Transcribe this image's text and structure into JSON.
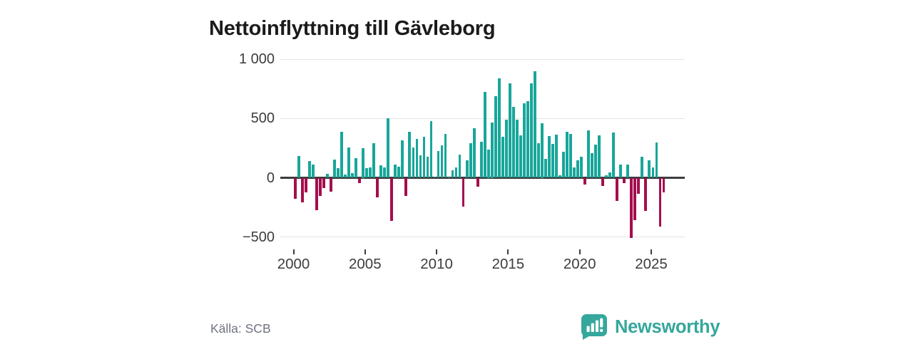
{
  "title": "Nettoinflyttning till Gävleborg",
  "source": "Källa: SCB",
  "logo": {
    "text": "Newsworthy"
  },
  "colors": {
    "positive_bar": "#18a69a",
    "negative_bar": "#a40e4e",
    "gridline": "#e4e4e4",
    "zero_line": "#3d3d3d",
    "axis_text": "#3d3d3d",
    "title_text": "#1b1b1b",
    "source_text": "#6f7380",
    "logo_teal": "#35a79c",
    "background": "#ffffff"
  },
  "y_axis": {
    "ticks": [
      {
        "label": "1 000",
        "value": 1000
      },
      {
        "label": "500",
        "value": 500
      },
      {
        "label": "0",
        "value": 0
      },
      {
        "label": "−500",
        "value": -500
      }
    ]
  },
  "x_axis": {
    "ticks": [
      "2000",
      "2005",
      "2010",
      "2015",
      "2020",
      "2025"
    ]
  },
  "chart_data": {
    "type": "bar",
    "title": "Nettoinflyttning till Gävleborg",
    "x_unit": "quarter",
    "x_range": [
      "2000 Q1",
      "2025 Q4"
    ],
    "ylim": [
      -620,
      1050
    ],
    "y_gridlines": [
      1000,
      500,
      0,
      -500
    ],
    "grid": "horizontal-only",
    "legend": "none",
    "series_by_year": [
      {
        "year": 2000,
        "values": [
          -176,
          182,
          -210,
          -125
        ]
      },
      {
        "year": 2001,
        "values": [
          141,
          113,
          -271,
          -156
        ]
      },
      {
        "year": 2002,
        "values": [
          -85,
          32,
          -115,
          155
        ]
      },
      {
        "year": 2003,
        "values": [
          81,
          390,
          30,
          256
        ]
      },
      {
        "year": 2004,
        "values": [
          40,
          166,
          -44,
          250
        ]
      },
      {
        "year": 2005,
        "values": [
          80,
          86,
          290,
          -164
        ]
      },
      {
        "year": 2006,
        "values": [
          106,
          86,
          500,
          -364
        ]
      },
      {
        "year": 2007,
        "values": [
          110,
          96,
          316,
          -154
        ]
      },
      {
        "year": 2008,
        "values": [
          386,
          256,
          326,
          190
        ]
      },
      {
        "year": 2009,
        "values": [
          346,
          176,
          476,
          10
        ]
      },
      {
        "year": 2010,
        "values": [
          226,
          276,
          370,
          5
        ]
      },
      {
        "year": 2011,
        "values": [
          66,
          86,
          196,
          -244
        ]
      },
      {
        "year": 2012,
        "values": [
          146,
          290,
          416,
          -74
        ]
      },
      {
        "year": 2013,
        "values": [
          306,
          726,
          236,
          466
        ]
      },
      {
        "year": 2014,
        "values": [
          686,
          840,
          346,
          490
        ]
      },
      {
        "year": 2015,
        "values": [
          794,
          600,
          490,
          360
        ]
      },
      {
        "year": 2016,
        "values": [
          630,
          646,
          796,
          900
        ]
      },
      {
        "year": 2017,
        "values": [
          290,
          460,
          160,
          350
        ]
      },
      {
        "year": 2018,
        "values": [
          286,
          366,
          20,
          220
        ]
      },
      {
        "year": 2019,
        "values": [
          390,
          370,
          90,
          150
        ]
      },
      {
        "year": 2020,
        "values": [
          180,
          -60,
          400,
          210
        ]
      },
      {
        "year": 2021,
        "values": [
          280,
          360,
          -70,
          20
        ]
      },
      {
        "year": 2022,
        "values": [
          45,
          380,
          -195,
          110
        ]
      },
      {
        "year": 2023,
        "values": [
          -45,
          110,
          -508,
          -358
        ]
      },
      {
        "year": 2024,
        "values": [
          -134,
          180,
          -280,
          146
        ]
      },
      {
        "year": 2025,
        "values": [
          90,
          300,
          -414,
          -124
        ]
      }
    ]
  }
}
